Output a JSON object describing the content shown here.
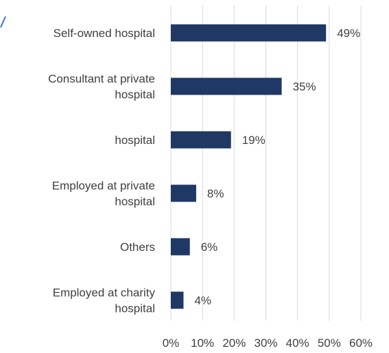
{
  "chart_data": {
    "type": "bar",
    "orientation": "horizontal",
    "categories": [
      [
        "Self-owned hospital"
      ],
      [
        "Consultant at private",
        "hospital"
      ],
      [
        "hospital"
      ],
      [
        "Employed at private",
        "hospital"
      ],
      [
        "Others"
      ],
      [
        "Employed at charity",
        "hospital"
      ]
    ],
    "values": [
      49,
      35,
      19,
      8,
      6,
      4
    ],
    "data_labels": [
      "49%",
      "35%",
      "19%",
      "8%",
      "6%",
      "4%"
    ],
    "x_ticks": [
      "0%",
      "10%",
      "20%",
      "30%",
      "40%",
      "50%",
      "60%"
    ],
    "xlim": [
      0,
      60
    ],
    "grid": true,
    "bar_color": "#1f3864",
    "title": "",
    "xlabel": "",
    "ylabel": ""
  }
}
